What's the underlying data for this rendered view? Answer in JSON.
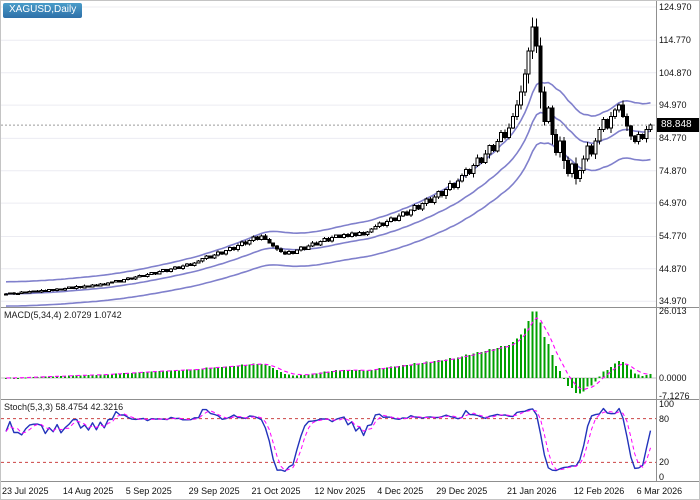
{
  "colors": {
    "background": "#ffffff",
    "grid": "#ececf2",
    "separator": "#8f8f8f",
    "candle_bull_fill": "#ffffff",
    "candle_bear_fill": "#000000",
    "candle_outline": "#000000",
    "band_line": "#8080cc",
    "current_price_line": "#9a9a9a",
    "macd_histogram": "#00a000",
    "macd_signal": "#ff00ff",
    "stoch_main": "#2233bb",
    "stoch_signal": "#ff00ff",
    "stoch_levels": "#cc4444",
    "price_badge_bg": "#000000",
    "price_badge_text": "#ffffff",
    "symbol_badge_bg": "#2e6fa8"
  },
  "chart_data": {
    "type": "candlestick",
    "title": "XAGUSD,Daily",
    "symbol": "XAGUSD",
    "timeframe": "Daily",
    "legend_position": "top-left",
    "grid": "horizontal-only",
    "price_axis": {
      "ylim": [
        33.2,
        126.8
      ],
      "current": 88.848,
      "current_label": "88.848",
      "labels": [
        {
          "value": 124.97,
          "label": "124.970"
        },
        {
          "value": 114.77,
          "label": "114.770"
        },
        {
          "value": 104.87,
          "label": "104.870"
        },
        {
          "value": 94.97,
          "label": "94.970"
        },
        {
          "value": 84.77,
          "label": "84.770"
        },
        {
          "value": 74.87,
          "label": "74.870"
        },
        {
          "value": 64.97,
          "label": "64.970"
        },
        {
          "value": 54.77,
          "label": "54.770"
        },
        {
          "value": 44.87,
          "label": "44.870"
        },
        {
          "value": 34.97,
          "label": "34.970"
        }
      ]
    },
    "x_axis_labels": [
      {
        "i": 0,
        "t": "23 Jul 2025"
      },
      {
        "i": 16,
        "t": "14 Aug 2025"
      },
      {
        "i": 32,
        "t": "5 Sep 2025"
      },
      {
        "i": 48,
        "t": "29 Sep 2025"
      },
      {
        "i": 64,
        "t": "21 Oct 2025"
      },
      {
        "i": 80,
        "t": "12 Nov 2025"
      },
      {
        "i": 96,
        "t": "4 Dec 2025"
      },
      {
        "i": 111,
        "t": "29 Dec 2025"
      },
      {
        "i": 129,
        "t": "21 Jan 2026"
      },
      {
        "i": 146,
        "t": "12 Feb 2026"
      },
      {
        "i": 162,
        "t": "6 Mar 2026"
      }
    ],
    "closes": [
      37.2,
      37.5,
      37.1,
      37.4,
      37.8,
      37.5,
      37.9,
      38.1,
      37.8,
      38.3,
      38.0,
      38.5,
      38.2,
      38.7,
      38.4,
      38.9,
      39.3,
      38.9,
      39.5,
      39.1,
      39.7,
      39.4,
      40.0,
      39.6,
      40.3,
      40.0,
      40.6,
      40.9,
      41.3,
      40.9,
      41.6,
      42.1,
      41.7,
      42.4,
      42.9,
      42.5,
      43.2,
      43.8,
      43.3,
      44.0,
      44.6,
      44.1,
      44.9,
      45.5,
      45.0,
      45.8,
      46.4,
      45.9,
      46.7,
      47.3,
      48.0,
      48.8,
      48.2,
      49.1,
      50.0,
      49.4,
      50.5,
      51.4,
      50.8,
      52.0,
      53.1,
      52.4,
      53.6,
      54.6,
      53.8,
      54.9,
      53.9,
      52.8,
      51.8,
      50.9,
      50.1,
      49.4,
      50.2,
      49.6,
      50.6,
      51.5,
      50.8,
      51.9,
      52.8,
      52.1,
      53.2,
      54.1,
      53.4,
      54.4,
      55.2,
      54.5,
      55.4,
      54.8,
      55.8,
      55.1,
      56.0,
      55.3,
      56.2,
      57.0,
      57.9,
      58.9,
      58.1,
      59.3,
      60.4,
      59.6,
      61.0,
      62.3,
      61.4,
      62.8,
      64.2,
      63.2,
      64.8,
      66.3,
      65.2,
      66.9,
      68.5,
      67.3,
      69.2,
      71.0,
      69.8,
      71.8,
      73.5,
      75.2,
      74.0,
      76.5,
      78.8,
      77.4,
      80.0,
      82.6,
      81.0,
      83.8,
      86.6,
      85.0,
      88.0,
      91.5,
      95.0,
      99.0,
      104.5,
      111.5,
      118.9,
      113.0,
      99.0,
      90.0,
      94.0,
      86.0,
      80.5,
      84.0,
      78.0,
      74.0,
      77.0,
      72.5,
      75.0,
      78.5,
      82.5,
      80.0,
      84.0,
      87.5,
      90.5,
      88.0,
      91.5,
      93.5,
      95.0,
      91.5,
      88.5,
      85.5,
      83.8,
      86.0,
      84.8,
      87.5,
      88.848
    ],
    "bands": {
      "style": "envelope-ma",
      "period": 20,
      "upper_pct": 10,
      "lower_pct": 10
    },
    "indicators": {
      "macd": {
        "label": "MACD(5,34,4) 2.0729 1.0742",
        "fast": 5,
        "slow": 34,
        "signal_period": 4,
        "last_main": 2.0729,
        "last_signal": 1.0742,
        "axis": [
          {
            "v": 26.013,
            "t": "26.013"
          },
          {
            "v": 0,
            "t": "0.0000"
          },
          {
            "v": -7.1276,
            "t": "-7.1276"
          }
        ]
      },
      "stoch": {
        "label": "Stoch(5,3,3) 58.4754 42.3216",
        "k": 5,
        "slowing": 3,
        "d": 3,
        "last_main": 58.4754,
        "last_signal": 42.3216,
        "levels": [
          80,
          20
        ],
        "axis": [
          {
            "v": 100,
            "t": "100"
          },
          {
            "v": 80,
            "t": "80"
          },
          {
            "v": 20,
            "t": "20"
          },
          {
            "v": 0,
            "t": "0"
          }
        ]
      }
    }
  }
}
